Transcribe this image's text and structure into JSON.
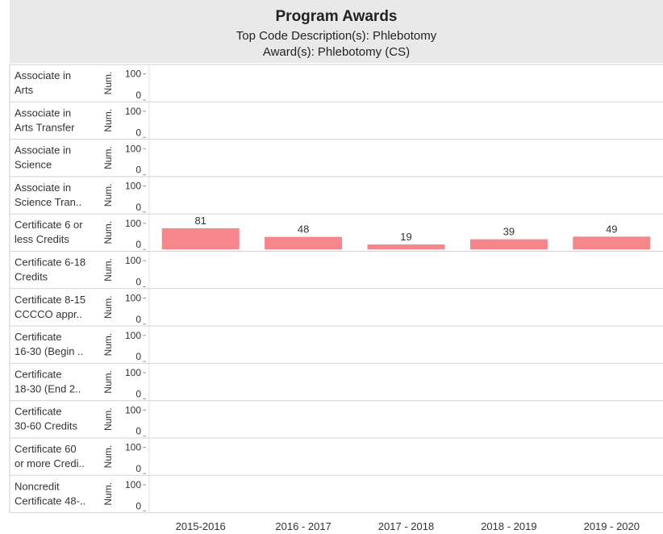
{
  "chart_data": {
    "type": "bar",
    "title": "Program Awards",
    "subtitle": [
      "Top Code Description(s): Phlebotomy",
      "Award(s): Phlebotomy (CS)"
    ],
    "y_label": "Num.",
    "categories": [
      "2015-2016",
      "2016 - 2017",
      "2017 - 2018",
      "2018 - 2019",
      "2019 - 2020"
    ],
    "ylim": [
      0,
      130
    ],
    "yticks": [
      100,
      0
    ],
    "color": "#f4868c",
    "panels": [
      {
        "name": [
          "Associate in",
          "Arts"
        ],
        "values": [
          null,
          null,
          null,
          null,
          null
        ]
      },
      {
        "name": [
          "Associate in",
          "Arts Transfer"
        ],
        "values": [
          null,
          null,
          null,
          null,
          null
        ]
      },
      {
        "name": [
          "Associate in",
          "Science"
        ],
        "values": [
          null,
          null,
          null,
          null,
          null
        ]
      },
      {
        "name": [
          "Associate in",
          "Science Tran.."
        ],
        "values": [
          null,
          null,
          null,
          null,
          null
        ]
      },
      {
        "name": [
          "Certificate 6 or",
          "less Credits"
        ],
        "values": [
          81,
          48,
          19,
          39,
          49
        ]
      },
      {
        "name": [
          "Certificate 6-18",
          "Credits"
        ],
        "values": [
          null,
          null,
          null,
          null,
          null
        ]
      },
      {
        "name": [
          "Certificate 8-15",
          "CCCCO appr.."
        ],
        "values": [
          null,
          null,
          null,
          null,
          null
        ]
      },
      {
        "name": [
          "Certificate",
          "16-30 (Begin .."
        ],
        "values": [
          null,
          null,
          null,
          null,
          null
        ]
      },
      {
        "name": [
          "Certificate",
          "18-30 (End 2.."
        ],
        "values": [
          null,
          null,
          null,
          null,
          null
        ]
      },
      {
        "name": [
          "Certificate",
          "30-60 Credits"
        ],
        "values": [
          null,
          null,
          null,
          null,
          null
        ]
      },
      {
        "name": [
          "Certificate 60",
          "or more Credi.."
        ],
        "values": [
          null,
          null,
          null,
          null,
          null
        ]
      },
      {
        "name": [
          "Noncredit",
          "Certificate 48-.."
        ],
        "values": [
          null,
          null,
          null,
          null,
          null
        ]
      }
    ]
  }
}
